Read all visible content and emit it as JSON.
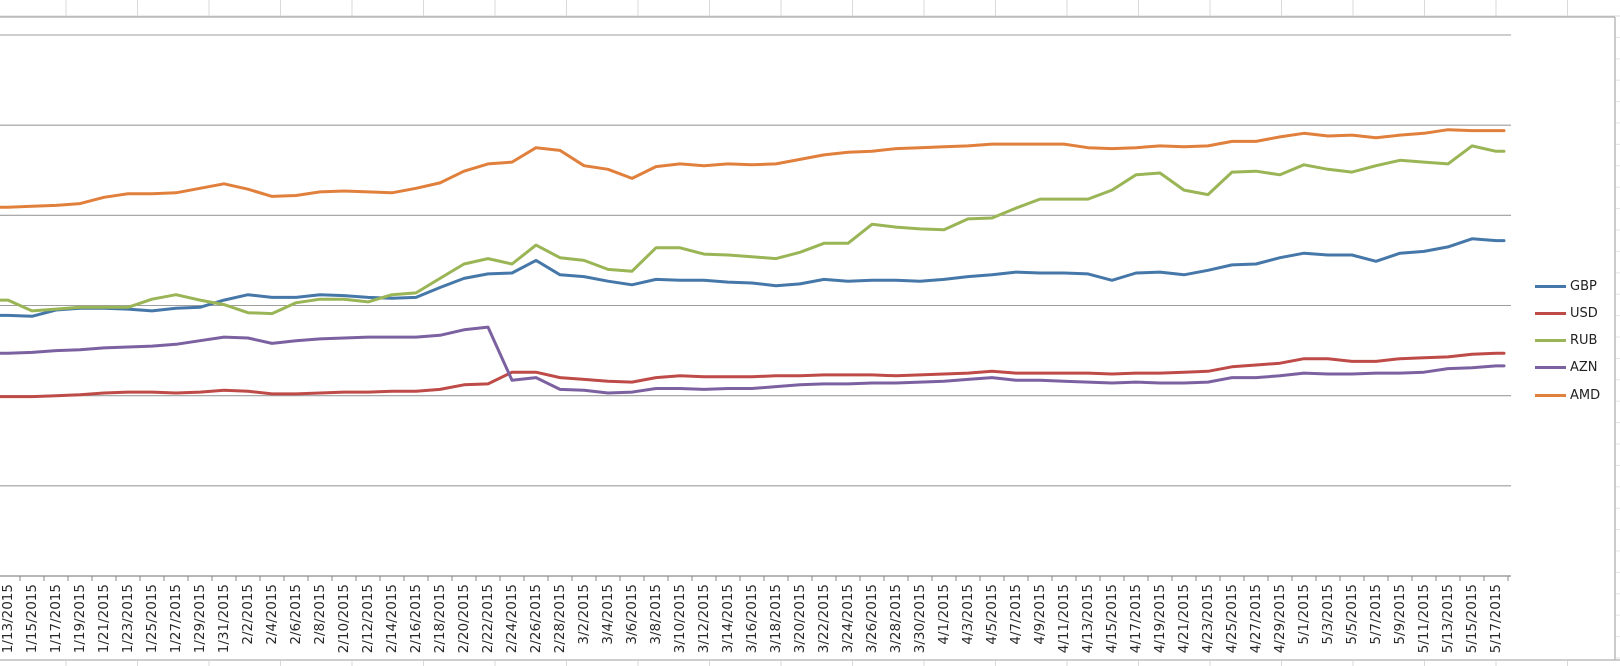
{
  "chart_data": {
    "type": "line",
    "title": "",
    "note": "Embedded spreadsheet line chart; y-axis labels cut off at left edge of screenshot, values estimated in horizontal-gridline units (1 unit = one gridline interval, axis baseline = 0)",
    "ylim": [
      0,
      6
    ],
    "gridline_step": 1,
    "grid": "horizontal only",
    "legend_position": "right",
    "x_tick_label_rotation_deg": 90,
    "y_axis_labels_visible": false,
    "categories": [
      "1/13/2015",
      "1/15/2015",
      "1/17/2015",
      "1/19/2015",
      "1/21/2015",
      "1/23/2015",
      "1/25/2015",
      "1/27/2015",
      "1/29/2015",
      "1/31/2015",
      "2/2/2015",
      "2/4/2015",
      "2/6/2015",
      "2/8/2015",
      "2/10/2015",
      "2/12/2015",
      "2/14/2015",
      "2/16/2015",
      "2/18/2015",
      "2/20/2015",
      "2/22/2015",
      "2/24/2015",
      "2/26/2015",
      "2/28/2015",
      "3/2/2015",
      "3/4/2015",
      "3/6/2015",
      "3/8/2015",
      "3/10/2015",
      "3/12/2015",
      "3/14/2015",
      "3/16/2015",
      "3/18/2015",
      "3/20/2015",
      "3/22/2015",
      "3/24/2015",
      "3/26/2015",
      "3/28/2015",
      "3/30/2015",
      "4/1/2015",
      "4/3/2015",
      "4/5/2015",
      "4/7/2015",
      "4/9/2015",
      "4/11/2015",
      "4/13/2015",
      "4/15/2015",
      "4/17/2015",
      "4/19/2015",
      "4/21/2015",
      "4/23/2015",
      "4/25/2015",
      "4/27/2015",
      "4/29/2015",
      "5/1/2015",
      "5/3/2015",
      "5/5/2015",
      "5/7/2015",
      "5/9/2015",
      "5/11/2015",
      "5/13/2015",
      "5/15/2015",
      "5/17/2015"
    ],
    "series": [
      {
        "name": "GBP",
        "color": "#4677A9",
        "values": [
          2.89,
          2.88,
          2.95,
          2.97,
          2.97,
          2.96,
          2.94,
          2.97,
          2.98,
          3.06,
          3.12,
          3.09,
          3.09,
          3.12,
          3.11,
          3.09,
          3.08,
          3.09,
          3.2,
          3.3,
          3.35,
          3.36,
          3.5,
          3.34,
          3.32,
          3.27,
          3.23,
          3.29,
          3.28,
          3.28,
          3.26,
          3.25,
          3.22,
          3.24,
          3.29,
          3.27,
          3.28,
          3.28,
          3.27,
          3.29,
          3.32,
          3.34,
          3.37,
          3.36,
          3.36,
          3.35,
          3.28,
          3.36,
          3.37,
          3.34,
          3.39,
          3.45,
          3.46,
          3.53,
          3.58,
          3.56,
          3.56,
          3.49,
          3.58,
          3.6,
          3.65,
          3.74,
          3.72
        ]
      },
      {
        "name": "USD",
        "color": "#BE4B48",
        "values": [
          1.99,
          1.99,
          2.0,
          2.01,
          2.03,
          2.04,
          2.04,
          2.03,
          2.04,
          2.06,
          2.05,
          2.02,
          2.02,
          2.03,
          2.04,
          2.04,
          2.05,
          2.05,
          2.07,
          2.12,
          2.13,
          2.26,
          2.26,
          2.2,
          2.18,
          2.16,
          2.15,
          2.2,
          2.22,
          2.21,
          2.21,
          2.21,
          2.22,
          2.22,
          2.23,
          2.23,
          2.23,
          2.22,
          2.23,
          2.24,
          2.25,
          2.27,
          2.25,
          2.25,
          2.25,
          2.25,
          2.24,
          2.25,
          2.25,
          2.26,
          2.27,
          2.32,
          2.34,
          2.36,
          2.41,
          2.41,
          2.38,
          2.38,
          2.41,
          2.42,
          2.43,
          2.46,
          2.47
        ]
      },
      {
        "name": "RUB",
        "color": "#9AB556",
        "values": [
          3.06,
          2.94,
          2.96,
          2.98,
          2.98,
          2.98,
          3.07,
          3.12,
          3.06,
          3.01,
          2.92,
          2.91,
          3.03,
          3.07,
          3.07,
          3.04,
          3.12,
          3.14,
          3.3,
          3.46,
          3.52,
          3.46,
          3.67,
          3.53,
          3.5,
          3.4,
          3.38,
          3.64,
          3.64,
          3.57,
          3.56,
          3.54,
          3.52,
          3.59,
          3.69,
          3.69,
          3.9,
          3.87,
          3.85,
          3.84,
          3.96,
          3.97,
          4.08,
          4.18,
          4.18,
          4.18,
          4.28,
          4.45,
          4.47,
          4.28,
          4.23,
          4.48,
          4.49,
          4.45,
          4.56,
          4.51,
          4.48,
          4.55,
          4.61,
          4.59,
          4.57,
          4.77,
          4.71
        ]
      },
      {
        "name": "AZN",
        "color": "#7C61A1",
        "values": [
          2.47,
          2.48,
          2.5,
          2.51,
          2.53,
          2.54,
          2.55,
          2.57,
          2.61,
          2.65,
          2.64,
          2.58,
          2.61,
          2.63,
          2.64,
          2.65,
          2.65,
          2.65,
          2.67,
          2.73,
          2.76,
          2.17,
          2.2,
          2.07,
          2.06,
          2.03,
          2.04,
          2.08,
          2.08,
          2.07,
          2.08,
          2.08,
          2.1,
          2.12,
          2.13,
          2.13,
          2.14,
          2.14,
          2.15,
          2.16,
          2.18,
          2.2,
          2.17,
          2.17,
          2.16,
          2.15,
          2.14,
          2.15,
          2.14,
          2.14,
          2.15,
          2.2,
          2.2,
          2.22,
          2.25,
          2.24,
          2.24,
          2.25,
          2.25,
          2.26,
          2.3,
          2.31,
          2.33
        ]
      },
      {
        "name": "AMD",
        "color": "#E0803C",
        "values": [
          4.09,
          4.1,
          4.11,
          4.13,
          4.2,
          4.24,
          4.24,
          4.25,
          4.3,
          4.35,
          4.29,
          4.21,
          4.22,
          4.26,
          4.27,
          4.26,
          4.25,
          4.3,
          4.36,
          4.49,
          4.57,
          4.59,
          4.75,
          4.72,
          4.55,
          4.51,
          4.41,
          4.54,
          4.57,
          4.55,
          4.57,
          4.56,
          4.57,
          4.62,
          4.67,
          4.7,
          4.71,
          4.74,
          4.75,
          4.76,
          4.77,
          4.79,
          4.79,
          4.79,
          4.79,
          4.75,
          4.74,
          4.75,
          4.77,
          4.76,
          4.77,
          4.82,
          4.82,
          4.87,
          4.91,
          4.88,
          4.89,
          4.86,
          4.89,
          4.91,
          4.95,
          4.94,
          4.94
        ]
      }
    ],
    "annotations": [
      "AZN series shows abrupt devaluation drop between 2/22/2015 and 2/24/2015"
    ]
  },
  "colors": {
    "gridline": "#9e9e9e",
    "axis_line": "#8a8a8a",
    "chart_border": "#aaaaaa",
    "cell_border": "#d9d9d9",
    "axis_label_text": "#262626",
    "legend_text": "#222222"
  }
}
